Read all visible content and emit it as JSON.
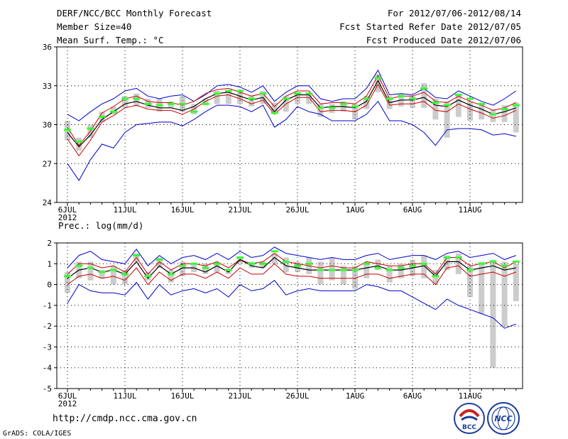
{
  "header": {
    "title": "DERF/NCC/BCC Monthly Forecast",
    "member_size": "Member Size=40",
    "variable": "Mean Surf. Temp.: °C",
    "period": "For 2012/07/06-2012/08/14",
    "started": "Fcst Started Refer Date 2012/07/05",
    "produced": "Fcst Produced Date 2012/07/06"
  },
  "lower_title": "Prec.: log(mm/d)",
  "footer": {
    "url": "http://cmdp.ncc.cma.gov.cn",
    "credit": "GrADS: COLA/IGES",
    "logo_left": "BCC",
    "logo_right": "NCC"
  },
  "colors": {
    "max_min": "#0000cc",
    "spread": "#cc0000",
    "mean": "#000000",
    "median": "#33ff33",
    "box": "#cccccc"
  },
  "chart_data": [
    {
      "type": "line",
      "title": "Mean Surf. Temp.: °C",
      "x_start_day": 0,
      "x_tick_labels": [
        "6JUL",
        "11JUL",
        "16JUL",
        "21JUL",
        "26JUL",
        "1AUG",
        "6AUG",
        "11AUG"
      ],
      "x_year_label": "2012",
      "ylim": [
        24,
        36
      ],
      "y_ticks": [
        24,
        27,
        30,
        33,
        36
      ],
      "series": [
        {
          "name": "max",
          "values": [
            30.8,
            30.3,
            31.0,
            31.6,
            32.0,
            32.6,
            32.8,
            32.2,
            32.0,
            32.2,
            32.3,
            31.8,
            32.3,
            33.0,
            33.1,
            32.9,
            32.5,
            33.0,
            31.8,
            32.5,
            33.0,
            33.0,
            32.0,
            31.8,
            32.0,
            32.0,
            32.8,
            34.2,
            32.3,
            32.4,
            32.3,
            32.8,
            32.1,
            32.0,
            32.6,
            32.2,
            31.8,
            31.5,
            32.0,
            32.6
          ]
        },
        {
          "name": "upper",
          "values": [
            29.8,
            28.4,
            29.5,
            30.9,
            31.4,
            32.0,
            32.2,
            31.8,
            31.7,
            31.7,
            31.5,
            31.8,
            32.4,
            32.7,
            32.8,
            32.5,
            32.2,
            32.4,
            31.4,
            32.2,
            32.6,
            32.6,
            31.6,
            31.7,
            31.7,
            31.6,
            32.2,
            33.8,
            32.0,
            32.2,
            32.2,
            32.5,
            31.8,
            31.7,
            32.2,
            31.8,
            31.5,
            31.1,
            31.3,
            31.7
          ]
        },
        {
          "name": "mean",
          "values": [
            29.4,
            28.3,
            29.2,
            30.4,
            31.0,
            31.6,
            31.8,
            31.5,
            31.3,
            31.3,
            31.1,
            31.4,
            32.0,
            32.4,
            32.5,
            32.2,
            31.9,
            32.1,
            31.0,
            31.9,
            32.3,
            32.3,
            31.3,
            31.4,
            31.4,
            31.3,
            31.8,
            33.4,
            31.7,
            31.9,
            31.9,
            32.1,
            31.5,
            31.4,
            31.9,
            31.5,
            31.2,
            30.8,
            31.0,
            31.3
          ]
        },
        {
          "name": "lower",
          "values": [
            28.9,
            27.6,
            28.8,
            30.2,
            30.7,
            31.3,
            31.5,
            31.2,
            31.1,
            31.1,
            30.8,
            31.2,
            31.8,
            32.2,
            32.3,
            32.0,
            31.6,
            31.9,
            30.8,
            31.6,
            32.1,
            32.1,
            31.0,
            31.1,
            31.1,
            31.0,
            31.5,
            33.1,
            31.5,
            31.6,
            31.6,
            31.8,
            31.1,
            31.0,
            31.6,
            31.2,
            30.9,
            30.5,
            30.7,
            31.1
          ]
        },
        {
          "name": "min",
          "values": [
            27.0,
            25.7,
            27.3,
            28.5,
            28.2,
            29.4,
            30.0,
            30.1,
            30.2,
            30.2,
            29.9,
            30.4,
            31.0,
            31.5,
            31.5,
            31.4,
            31.0,
            31.5,
            29.8,
            30.4,
            31.4,
            31.0,
            30.8,
            30.3,
            30.3,
            30.3,
            30.8,
            31.8,
            30.3,
            30.3,
            30.0,
            29.4,
            28.4,
            29.6,
            29.7,
            29.7,
            29.6,
            29.2,
            29.3,
            29.1
          ]
        },
        {
          "name": "median",
          "values": [
            29.6,
            28.7,
            29.7,
            30.6,
            31.0,
            32.0,
            32.0,
            31.6,
            31.5,
            31.6,
            31.6,
            31.0,
            31.6,
            32.4,
            32.6,
            32.6,
            32.0,
            32.4,
            30.9,
            32.0,
            32.4,
            32.4,
            31.3,
            31.3,
            31.6,
            31.4,
            32.0,
            33.6,
            32.0,
            32.2,
            32.0,
            32.8,
            31.7,
            31.5,
            32.3,
            32.0,
            31.6,
            30.8,
            31.2,
            31.5
          ]
        }
      ],
      "boxes": [
        [
          28.8,
          30.3
        ],
        [
          28.0,
          29.0
        ],
        [
          29.0,
          30.0
        ],
        [
          30.2,
          31.0
        ],
        [
          30.8,
          31.4
        ],
        [
          31.3,
          32.2
        ],
        [
          31.4,
          32.4
        ],
        [
          31.3,
          32.0
        ],
        [
          31.0,
          32.0
        ],
        [
          31.3,
          31.8
        ],
        [
          31.0,
          32.2
        ],
        [
          30.8,
          31.6
        ],
        [
          31.5,
          32.0
        ],
        [
          31.6,
          32.6
        ],
        [
          31.6,
          32.4
        ],
        [
          31.6,
          32.5
        ],
        [
          31.4,
          32.2
        ],
        [
          31.6,
          32.6
        ],
        [
          31.0,
          31.7
        ],
        [
          31.0,
          32.2
        ],
        [
          31.6,
          32.5
        ],
        [
          31.6,
          32.4
        ],
        [
          30.6,
          31.6
        ],
        [
          30.9,
          31.6
        ],
        [
          31.0,
          31.8
        ],
        [
          30.4,
          31.6
        ],
        [
          31.2,
          32.2
        ],
        [
          32.5,
          33.9
        ],
        [
          31.2,
          32.2
        ],
        [
          31.4,
          32.4
        ],
        [
          31.3,
          32.2
        ],
        [
          31.3,
          33.2
        ],
        [
          30.4,
          32.0
        ],
        [
          29.0,
          31.8
        ],
        [
          30.6,
          32.4
        ],
        [
          30.3,
          31.8
        ],
        [
          30.4,
          31.6
        ],
        [
          30.2,
          31.2
        ],
        [
          30.2,
          31.5
        ],
        [
          29.4,
          31.7
        ]
      ]
    },
    {
      "type": "line",
      "title": "Prec.: log(mm/d)",
      "x_start_day": 0,
      "x_tick_labels": [
        "6JUL",
        "11JUL",
        "16JUL",
        "21JUL",
        "26JUL",
        "1AUG",
        "6AUG",
        "11AUG"
      ],
      "x_year_label": "2012",
      "ylim": [
        -5,
        2
      ],
      "y_ticks": [
        -5,
        -4,
        -3,
        -2,
        -1,
        0,
        1,
        2
      ],
      "series": [
        {
          "name": "max",
          "values": [
            0.8,
            1.4,
            1.6,
            1.2,
            1.1,
            1.0,
            1.7,
            0.9,
            1.4,
            1.0,
            1.3,
            1.4,
            1.2,
            1.5,
            1.2,
            1.6,
            1.3,
            1.4,
            1.8,
            1.5,
            1.4,
            1.3,
            1.2,
            1.3,
            1.2,
            1.2,
            1.4,
            1.5,
            1.2,
            1.3,
            1.4,
            1.4,
            1.2,
            1.5,
            1.6,
            1.3,
            1.4,
            1.5,
            1.2,
            1.4
          ]
        },
        {
          "name": "upper",
          "values": [
            0.5,
            1.0,
            1.0,
            0.8,
            0.9,
            0.6,
            1.3,
            0.5,
            1.1,
            0.7,
            1.0,
            1.0,
            0.9,
            1.1,
            0.8,
            1.2,
            1.0,
            1.1,
            1.5,
            1.1,
            1.0,
            0.9,
            0.8,
            0.9,
            0.8,
            0.8,
            1.1,
            1.0,
            0.9,
            0.9,
            1.0,
            1.0,
            0.5,
            1.3,
            1.3,
            0.9,
            1.0,
            1.1,
            0.8,
            1.1
          ]
        },
        {
          "name": "mean",
          "values": [
            0.3,
            0.7,
            0.8,
            0.6,
            0.7,
            0.5,
            1.1,
            0.3,
            0.9,
            0.5,
            0.8,
            0.8,
            0.6,
            0.9,
            0.6,
            1.2,
            0.9,
            0.8,
            1.3,
            0.9,
            0.8,
            0.7,
            0.7,
            0.7,
            0.7,
            0.7,
            0.8,
            0.9,
            0.7,
            0.7,
            0.8,
            0.9,
            0.4,
            1.1,
            1.1,
            0.7,
            0.8,
            0.9,
            0.7,
            0.8
          ]
        },
        {
          "name": "lower",
          "values": [
            0.0,
            0.4,
            0.5,
            0.3,
            0.4,
            0.2,
            0.8,
            0.0,
            0.6,
            0.2,
            0.5,
            0.5,
            0.3,
            0.6,
            0.3,
            0.8,
            0.5,
            0.5,
            1.0,
            0.5,
            0.4,
            0.4,
            0.3,
            0.3,
            0.3,
            0.3,
            0.5,
            0.5,
            0.3,
            0.4,
            0.5,
            0.5,
            0.0,
            0.8,
            0.9,
            0.4,
            0.5,
            0.6,
            0.4,
            0.6
          ]
        },
        {
          "name": "min",
          "values": [
            -0.9,
            0.0,
            -0.3,
            -0.4,
            -0.4,
            -0.5,
            0.1,
            -0.7,
            0.0,
            -0.5,
            -0.3,
            -0.2,
            -0.4,
            -0.2,
            -0.6,
            0.0,
            -0.3,
            -0.2,
            0.2,
            -0.5,
            -0.3,
            -0.2,
            -0.3,
            -0.3,
            -0.3,
            -0.3,
            0.0,
            -0.1,
            -0.3,
            -0.3,
            -0.6,
            -0.9,
            -1.2,
            -0.7,
            -1.0,
            -1.2,
            -1.4,
            -1.6,
            -2.1,
            -1.9
          ]
        },
        {
          "name": "median",
          "values": [
            0.4,
            0.9,
            0.8,
            0.6,
            0.7,
            0.5,
            1.4,
            0.4,
            1.2,
            0.5,
            0.9,
            1.0,
            0.8,
            1.0,
            0.7,
            1.3,
            1.0,
            1.0,
            1.6,
            1.1,
            0.9,
            1.0,
            0.7,
            0.7,
            0.7,
            0.7,
            1.0,
            0.8,
            0.7,
            0.8,
            0.9,
            1.0,
            0.4,
            1.3,
            1.3,
            0.7,
            1.0,
            1.1,
            0.9,
            1.1
          ]
        }
      ],
      "boxes": [
        [
          -0.4,
          0.6
        ],
        [
          0.3,
          1.1
        ],
        [
          0.2,
          1.1
        ],
        [
          0.3,
          0.7
        ],
        [
          0.0,
          0.9
        ],
        [
          0.0,
          0.7
        ],
        [
          1.1,
          1.5
        ],
        [
          0.2,
          0.6
        ],
        [
          0.8,
          1.3
        ],
        [
          0.1,
          0.7
        ],
        [
          0.4,
          1.1
        ],
        [
          0.6,
          1.0
        ],
        [
          0.5,
          1.0
        ],
        [
          0.6,
          1.1
        ],
        [
          0.5,
          0.7
        ],
        [
          1.0,
          1.3
        ],
        [
          0.8,
          1.1
        ],
        [
          0.8,
          1.1
        ],
        [
          1.0,
          1.5
        ],
        [
          0.6,
          1.3
        ],
        [
          0.6,
          1.1
        ],
        [
          0.5,
          1.3
        ],
        [
          0.0,
          1.1
        ],
        [
          0.2,
          1.3
        ],
        [
          0.0,
          0.9
        ],
        [
          -0.2,
          0.9
        ],
        [
          0.3,
          1.1
        ],
        [
          0.7,
          1.2
        ],
        [
          0.1,
          0.9
        ],
        [
          0.3,
          1.0
        ],
        [
          0.4,
          1.2
        ],
        [
          0.3,
          1.4
        ],
        [
          0.0,
          0.7
        ],
        [
          0.7,
          1.4
        ],
        [
          0.5,
          1.5
        ],
        [
          -0.6,
          0.9
        ],
        [
          -1.4,
          1.1
        ],
        [
          -4.0,
          1.2
        ],
        [
          -2.0,
          1.1
        ],
        [
          -0.8,
          1.0
        ]
      ]
    }
  ]
}
